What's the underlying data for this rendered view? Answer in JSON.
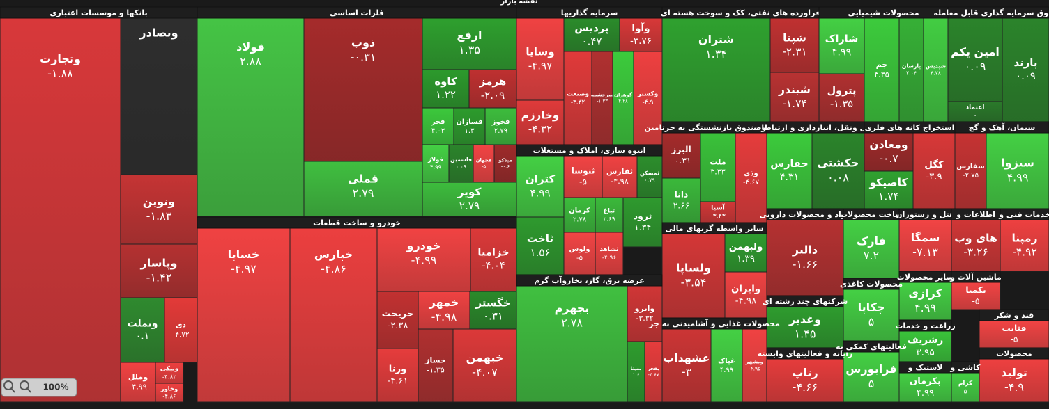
{
  "title": "نقشه بازار",
  "zoom": "100%",
  "sectors": [
    {
      "title": "بانکها و موسسات اعتباری",
      "tiles": [
        {
          "name": "وتجارت",
          "change": "-۱.۸۸",
          "color": "#d8383a"
        },
        {
          "name": "وبصادر",
          "color": "#2e2e2e"
        },
        {
          "name": "ونوین",
          "change": "-۱.۸۳",
          "color": "#c53434"
        },
        {
          "name": "وپاسار",
          "change": "-۱.۴۲",
          "color": "#b53131"
        },
        {
          "name": "وبملت",
          "change": "۰.۱",
          "color": "#2f8a2f"
        },
        {
          "name": "دی",
          "change": "-۴.۷۲",
          "color": "#e33a38"
        },
        {
          "name": "وملل",
          "change": "-۴.۹۹",
          "color": "#f24242"
        },
        {
          "name": "ونیکی",
          "change": "-۴.۸۲",
          "color": "#ee3f3f"
        },
        {
          "name": "وخاور",
          "change": "-۴.۸۶",
          "color": "#ef4040"
        }
      ]
    },
    {
      "title": "فلزات اساسی",
      "tiles": [
        {
          "name": "فولاد",
          "change": "۲.۸۸",
          "color": "#45c445"
        },
        {
          "name": "ذوب",
          "change": "-۰.۳۱",
          "color": "#a52b2b"
        },
        {
          "name": "فملی",
          "change": "۲.۷۹",
          "color": "#40bf40"
        },
        {
          "name": "ارفع",
          "change": "۱.۳۵",
          "color": "#2ea02e"
        },
        {
          "name": "کاوه",
          "change": "۱.۲۲",
          "color": "#2c9a2c"
        },
        {
          "name": "هرمز",
          "change": "-۲.۰۹",
          "color": "#bf3030"
        },
        {
          "name": "فجر",
          "change": "۴.۰۳",
          "color": "#3cc93c"
        },
        {
          "name": "فسازان",
          "change": "۱.۳",
          "color": "#2d9c2d"
        },
        {
          "name": "فخوز",
          "change": "۲.۷۹",
          "color": "#3dbd3d"
        },
        {
          "name": "فولاژ",
          "change": "۴.۹۹",
          "color": "#44d044"
        },
        {
          "name": "فاسمین",
          "change": "۰.۰۹",
          "color": "#2b842b"
        },
        {
          "name": "فجهان",
          "change": "-۵",
          "color": "#f24444"
        },
        {
          "name": "میدکو",
          "change": "-۰.۶",
          "color": "#9e2a2a"
        },
        {
          "name": "کویر",
          "change": "۲.۷۹",
          "color": "#3dbd3d"
        }
      ]
    },
    {
      "title": "خودرو و ساخت قطعات",
      "tiles": [
        {
          "name": "خساپا",
          "change": "-۴.۹۷",
          "color": "#f04242"
        },
        {
          "name": "خپارس",
          "change": "-۴.۸۶",
          "color": "#ec3f3f"
        },
        {
          "name": "خودرو",
          "change": "-۴.۹۹",
          "color": "#f24343"
        },
        {
          "name": "خزامیا",
          "change": "-۴.۰۴",
          "color": "#dc3939"
        },
        {
          "name": "خریخت",
          "change": "-۲.۳۸",
          "color": "#c23131"
        },
        {
          "name": "خمهر",
          "change": "-۴.۹۸",
          "color": "#f04242"
        },
        {
          "name": "خگستر",
          "change": "۰.۳۱",
          "color": "#2a8a2a"
        },
        {
          "name": "ورنا",
          "change": "-۴.۶۱",
          "color": "#e63c3c"
        },
        {
          "name": "خساز",
          "change": "-۱.۳۵",
          "color": "#b03030"
        },
        {
          "name": "خبهمن",
          "change": "-۴.۰۷",
          "color": "#dc3939"
        }
      ]
    },
    {
      "title": "سرمایه گذاریها",
      "tiles": [
        {
          "name": "وسایا",
          "change": "-۴.۹۷",
          "color": "#f04242"
        },
        {
          "name": "پردیس",
          "change": "۰.۴۷",
          "color": "#2b8c2b"
        },
        {
          "name": "وآوا",
          "change": "-۳.۷۶",
          "color": "#d83838"
        },
        {
          "name": "وخارزم",
          "change": "-۴.۳۲",
          "color": "#e03a3a"
        },
        {
          "name": "وصنعت",
          "change": "-۴.۳۲",
          "color": "#e03a3a"
        },
        {
          "name": "سرچشمه",
          "change": "-۱.۳۳",
          "color": "#b03030"
        },
        {
          "name": "گوهران",
          "change": "۴.۲۸",
          "color": "#3ccb3c"
        },
        {
          "name": "وکستر",
          "change": "-۴.۹",
          "color": "#ee4040"
        }
      ]
    },
    {
      "title": "انبوه سازی، املاک و مستغلات",
      "tiles": [
        {
          "name": "کتران",
          "change": "۴.۹۹",
          "color": "#44d044"
        },
        {
          "name": "ثنوسا",
          "change": "-۵",
          "color": "#f24444"
        },
        {
          "name": "ثفارس",
          "change": "-۴.۹۸",
          "color": "#f04242"
        },
        {
          "name": "ثمسکن",
          "change": "۰.۷۹",
          "color": "#2c8e2c"
        },
        {
          "name": "ثاخت",
          "change": "۱.۵۶",
          "color": "#2e9a2e"
        },
        {
          "name": "کرمان",
          "change": "۲.۷۸",
          "color": "#3cbc3c"
        },
        {
          "name": "ثباغ",
          "change": "۲.۶۹",
          "color": "#3bb93b"
        },
        {
          "name": "ثرود",
          "change": "۱.۳۴",
          "color": "#2e9a2e"
        },
        {
          "name": "ولوس",
          "change": "-۵",
          "color": "#f24444"
        },
        {
          "name": "ثشاهد",
          "change": "-۴.۹۶",
          "color": "#f04242"
        }
      ]
    },
    {
      "title": "عرضه برق، گاز، بخاروآب گرم",
      "tiles": [
        {
          "name": "بجهرم",
          "change": "۲.۷۸",
          "color": "#40c040"
        },
        {
          "name": "وایرو",
          "change": "-۳.۳۲",
          "color": "#d03636"
        },
        {
          "name": "بمپنا",
          "change": "۱.۶",
          "color": "#2e9c2e"
        },
        {
          "name": "بفجر",
          "change": "-۴.۶۷",
          "color": "#e63c3c"
        }
      ]
    },
    {
      "title": "فراورده های نفتی، کک و سوخت هسته ای",
      "tiles": [
        {
          "name": "شتران",
          "change": "۱.۳۴",
          "color": "#2fa12f"
        },
        {
          "name": "شپنا",
          "change": "-۲.۳۱",
          "color": "#c03131"
        },
        {
          "name": "شبندر",
          "change": "-۱.۷۴",
          "color": "#b83232"
        }
      ]
    },
    {
      "title": "محصولات شیمیایی",
      "tiles": [
        {
          "name": "شاراک",
          "change": "۴.۹۹",
          "color": "#44d044"
        },
        {
          "name": "پترول",
          "change": "-۱.۳۵",
          "color": "#b03030"
        },
        {
          "name": "جم",
          "change": "۴.۳۵",
          "color": "#3ccb3c"
        },
        {
          "name": "پارسان",
          "change": "۲.۰۴",
          "color": "#36b036"
        },
        {
          "name": "شپدیس",
          "change": "۴.۷۸",
          "color": "#42cd42"
        }
      ]
    },
    {
      "title": "صندوق سرمایه گذاری قابل معامله",
      "tiles": [
        {
          "name": "امین یکم",
          "change": "۰.۰۹",
          "color": "#2b842b"
        },
        {
          "name": "پارند",
          "change": "۰.۰۹",
          "color": "#2b842b"
        },
        {
          "name": "اعتماد",
          "change": "۰",
          "color": "#2a7a2a"
        }
      ]
    },
    {
      "title": "بیمه وصندوق بازنشستگی به جزتامین",
      "tiles": [
        {
          "name": "البرز",
          "change": "-۰.۳۱",
          "color": "#a52b2b"
        },
        {
          "name": "ملت",
          "change": "۳.۳۳",
          "color": "#3ac23a"
        },
        {
          "name": "وذی",
          "change": "-۴.۶۷",
          "color": "#e63c3c"
        },
        {
          "name": "دانا",
          "change": "۲.۶۶",
          "color": "#3bb93b"
        },
        {
          "name": "آسیا",
          "change": "-۳.۴۳",
          "color": "#d23737"
        }
      ]
    },
    {
      "title": "سایر واسطه گریهای مالی",
      "tiles": [
        {
          "name": "ولساپا",
          "change": "-۳.۵۴",
          "color": "#d43737"
        },
        {
          "name": "ولبهمن",
          "change": "۱.۳۹",
          "color": "#2e9c2e"
        },
        {
          "name": "وایران",
          "change": "-۴.۹۸",
          "color": "#f04242"
        }
      ]
    },
    {
      "title": "محصولات غذایی و آشامیدنی به جز",
      "tiles": [
        {
          "name": "غشهداب",
          "change": "-۳",
          "color": "#cc3535"
        },
        {
          "name": "غپاک",
          "change": "۴.۹۹",
          "color": "#44d044"
        },
        {
          "name": "وبشهر",
          "change": "-۴.۹۵",
          "color": "#f04242"
        }
      ]
    },
    {
      "title": "حمل ونقل، انبارداری و ارتباطات",
      "tiles": [
        {
          "name": "حفارس",
          "change": "۴.۳۱",
          "color": "#3ccb3c"
        },
        {
          "name": "حکشتی",
          "change": "۰.۰۸",
          "color": "#2b842b"
        }
      ]
    },
    {
      "title": "استخراج کانه های فلزی",
      "tiles": [
        {
          "name": "ومعادن",
          "change": "-۰.۷",
          "color": "#a02a2a"
        },
        {
          "name": "کگل",
          "change": "-۳.۹",
          "color": "#d83838"
        },
        {
          "name": "کاصیکو",
          "change": "۱.۷۴",
          "color": "#30a230"
        }
      ]
    },
    {
      "title": "سیمان، آهک و گچ",
      "tiles": [
        {
          "name": "سفارس",
          "change": "-۲.۷۵",
          "color": "#c63333"
        },
        {
          "name": "سبزوا",
          "change": "۴.۹۹",
          "color": "#44d044"
        }
      ]
    },
    {
      "title": "مواد و محصولات دارویی",
      "tiles": [
        {
          "name": "دالبر",
          "change": "-۱.۶۶",
          "color": "#b53131"
        }
      ]
    },
    {
      "title": "ساخت محصولات",
      "tiles": [
        {
          "name": "فارک",
          "change": "۷.۲",
          "color": "#44d044"
        }
      ]
    },
    {
      "title": "هتل و رستوران",
      "tiles": [
        {
          "name": "سمگا",
          "change": "-۷.۱۳",
          "color": "#f24444"
        }
      ]
    },
    {
      "title": "اطلاعات و",
      "tiles": [
        {
          "name": "های وب",
          "change": "-۳.۲۶",
          "color": "#d03636"
        }
      ]
    },
    {
      "title": "خدمات فنی و",
      "tiles": [
        {
          "name": "رمپنا",
          "change": "-۴.۹۲",
          "color": "#ee4040"
        }
      ]
    },
    {
      "title": "محصولات کاغذی",
      "tiles": [
        {
          "name": "چکاپا",
          "change": "۵",
          "color": "#44d044"
        }
      ]
    },
    {
      "title": "شرکتهای چند رشته ای",
      "tiles": [
        {
          "name": "وغدیر",
          "change": "۱.۴۵",
          "color": "#2e9c2e"
        }
      ]
    },
    {
      "title": "رایانه و فعالیتهای وابسته",
      "tiles": [
        {
          "name": "رتاپ",
          "change": "-۴.۶۶",
          "color": "#e63c3c"
        }
      ]
    },
    {
      "title": "فعالیتهای کمکی به",
      "tiles": [
        {
          "name": "فرابورس",
          "change": "۵",
          "color": "#44d044"
        }
      ]
    },
    {
      "title": "سایر محصولات",
      "tiles": [
        {
          "name": "کرازی",
          "change": "۴.۹۹",
          "color": "#44d044"
        }
      ]
    },
    {
      "title": "ماشین آلات و",
      "tiles": [
        {
          "name": "تکمبا",
          "change": "-۵",
          "color": "#f24444"
        }
      ]
    },
    {
      "title": "زراعت و خدمات",
      "tiles": [
        {
          "name": "زشریف",
          "change": "۳.۹۵",
          "color": "#3ac43a"
        }
      ]
    },
    {
      "title": "لاستیک و",
      "tiles": [
        {
          "name": "پکرمان",
          "change": "۴.۹۹",
          "color": "#44d044"
        }
      ]
    },
    {
      "title": "کاشی و",
      "tiles": [
        {
          "name": "کرام",
          "change": "۵",
          "color": "#44d044"
        }
      ]
    },
    {
      "title": "قند و شکر",
      "tiles": [
        {
          "name": "قثابت",
          "change": "-۵",
          "color": "#f24444"
        }
      ]
    },
    {
      "title": "محصولات",
      "tiles": [
        {
          "name": "تولید",
          "change": "-۴.۹",
          "color": "#ee4040"
        }
      ]
    }
  ]
}
